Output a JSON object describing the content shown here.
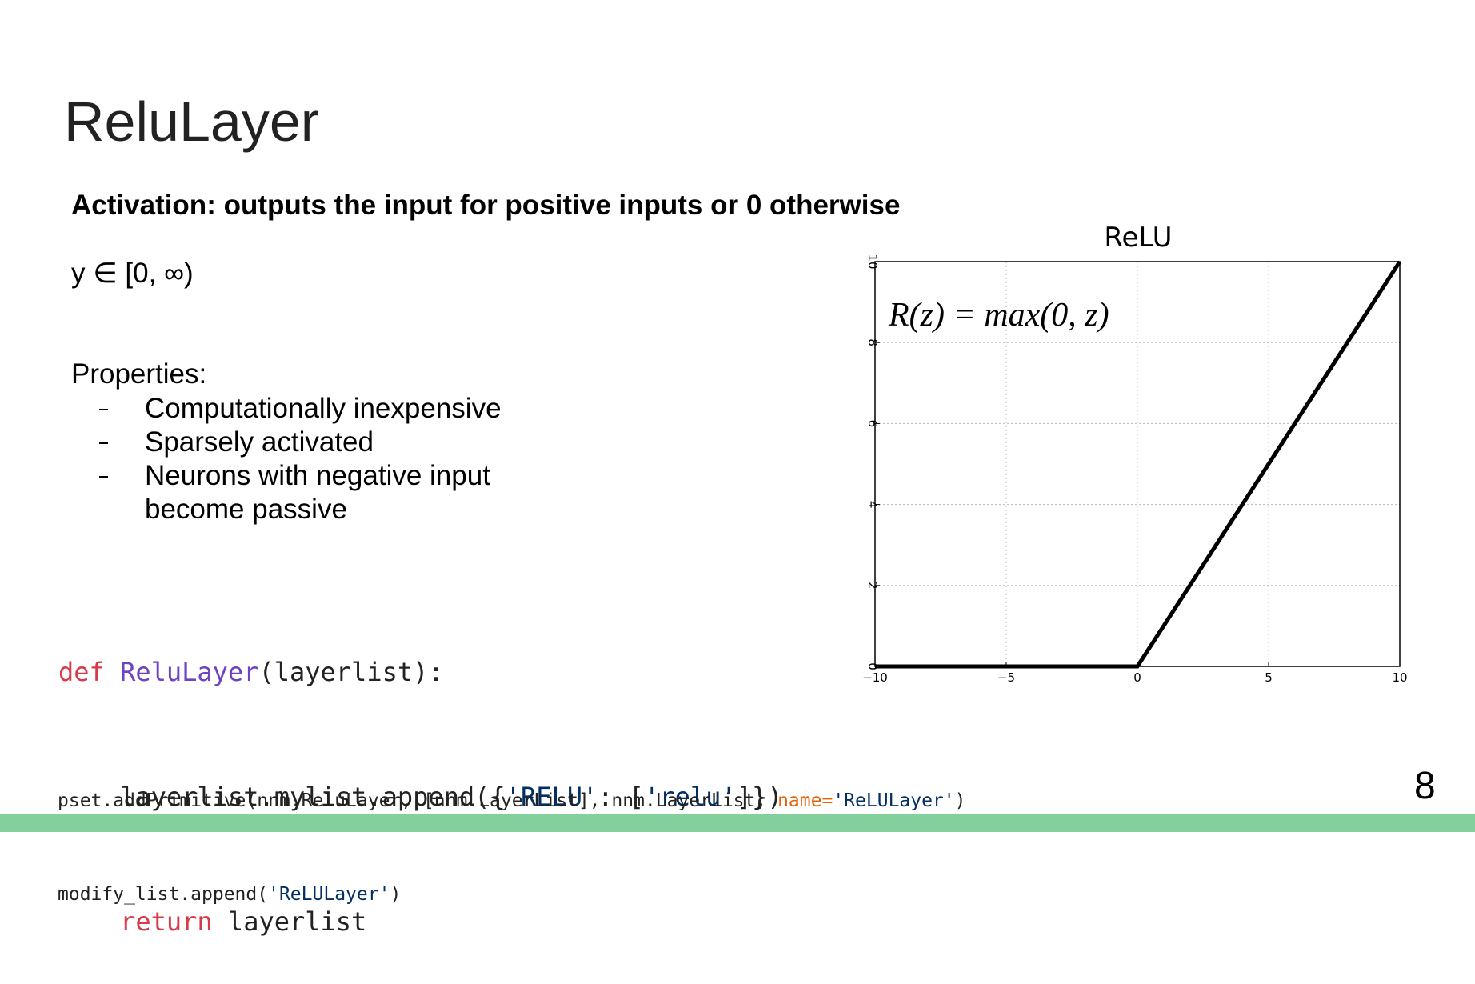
{
  "title": "ReluLayer",
  "subtitle": "Activation: outputs the input for positive inputs or 0 otherwise",
  "range": "y ∈ [0, ∞)",
  "properties": {
    "heading": "Properties:",
    "items": [
      "Computationally inexpensive",
      "Sparsely activated",
      "Neurons with negative input become passive"
    ]
  },
  "code": [
    [
      "def",
      " ",
      "ReluLayer",
      "(layerlist):"
    ],
    [
      "    layerlist.mylist.append({",
      "'RELU'",
      ": [",
      "'relu'",
      "]})"
    ],
    [
      "    ",
      "return",
      " layerlist"
    ]
  ],
  "usage": [
    [
      "pset.addPrimitive(nnm.ReluLayer, [nnm.LayerList], nnm.LayerList, ",
      "name=",
      "'ReLULayer'",
      ")"
    ],
    [
      "modify_list.append(",
      "'ReLULayer'",
      ")"
    ]
  ],
  "page_number": "8",
  "chart_data": {
    "type": "line",
    "title": "ReLU",
    "annotation": "R(z) = max(0,  z)",
    "x": [
      -10,
      0,
      10
    ],
    "values": [
      0,
      0,
      10
    ],
    "color": "#000000",
    "xlim": [
      -10,
      10
    ],
    "ylim": [
      0,
      10
    ],
    "xticks": [
      {
        "value": -10,
        "label": "−10"
      },
      {
        "value": -5,
        "label": "−5"
      },
      0,
      5,
      10
    ],
    "yticks": [
      0,
      2,
      4,
      6,
      8,
      10
    ],
    "grid": true
  }
}
